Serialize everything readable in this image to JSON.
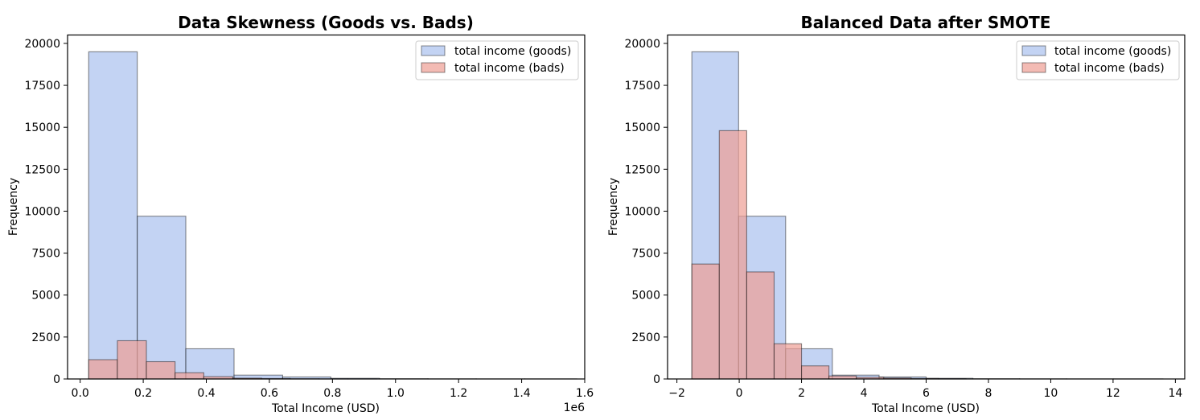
{
  "colors": {
    "goods": "#a9c0ee",
    "bads": "#ee9e94",
    "edge": "#000000",
    "alpha": 0.7,
    "edge_alpha": 0.45
  },
  "charts": [
    {
      "title": "Data Skewness (Goods vs. Bads)",
      "xlabel": "Total Income (USD)",
      "ylabel": "Frequency",
      "offset_text": "1e6",
      "xticks": [
        "0.0",
        "0.2",
        "0.4",
        "0.6",
        "0.8",
        "1.0",
        "1.2",
        "1.4",
        "1.6"
      ],
      "yticks": [
        "0",
        "2500",
        "5000",
        "7500",
        "10000",
        "12500",
        "15000",
        "17500",
        "20000"
      ],
      "legend": [
        "total income (goods)",
        "total income (bads)"
      ]
    },
    {
      "title": "Balanced Data after SMOTE",
      "xlabel": "Total Income (USD)",
      "ylabel": "Frequency",
      "offset_text": "",
      "xticks": [
        "−2",
        "0",
        "2",
        "4",
        "6",
        "8",
        "10",
        "12",
        "14"
      ],
      "yticks": [
        "0",
        "2500",
        "5000",
        "7500",
        "10000",
        "12500",
        "15000",
        "17500",
        "20000"
      ],
      "legend": [
        "total income (goods)",
        "total income (bads)"
      ]
    }
  ],
  "chart_data": [
    {
      "type": "histogram",
      "title": "Data Skewness (Goods vs. Bads)",
      "xlabel": "Total Income (USD)",
      "ylabel": "Frequency",
      "x_scale_label": "1e6",
      "xlim": [
        -0.04,
        1.6
      ],
      "ylim": [
        0,
        20500
      ],
      "x_ticks": [
        0.0,
        0.2,
        0.4,
        0.6,
        0.8,
        1.0,
        1.2,
        1.4,
        1.6
      ],
      "y_ticks": [
        0,
        2500,
        5000,
        7500,
        10000,
        12500,
        15000,
        17500,
        20000
      ],
      "legend_position": "upper right",
      "series": [
        {
          "name": "total income (goods)",
          "bin_edges": [
            0.027,
            0.181,
            0.335,
            0.488,
            0.642,
            0.795,
            0.949,
            1.103,
            1.256,
            1.41,
            1.575
          ],
          "counts": [
            19500,
            9700,
            1800,
            230,
            120,
            40,
            15,
            8,
            5,
            5
          ]
        },
        {
          "name": "total income (bads)",
          "bin_edges": [
            0.027,
            0.118,
            0.21,
            0.301,
            0.392,
            0.484,
            0.575,
            0.666,
            0.758,
            0.849,
            0.94
          ],
          "counts": [
            1150,
            2280,
            1030,
            370,
            140,
            50,
            30,
            12,
            5,
            3
          ]
        }
      ]
    },
    {
      "type": "histogram",
      "title": "Balanced Data after SMOTE",
      "xlabel": "Total Income (USD)",
      "ylabel": "Frequency",
      "xlim": [
        -2.3,
        14.3
      ],
      "ylim": [
        0,
        20500
      ],
      "x_ticks": [
        -2,
        0,
        2,
        4,
        6,
        8,
        10,
        12,
        14
      ],
      "y_ticks": [
        0,
        2500,
        5000,
        7500,
        10000,
        12500,
        15000,
        17500,
        20000
      ],
      "legend_position": "upper right",
      "series": [
        {
          "name": "total income (goods)",
          "bin_edges": [
            -1.52,
            -0.02,
            1.49,
            2.99,
            4.49,
            6.0,
            7.5,
            9.0,
            10.51,
            12.01,
            13.6
          ],
          "counts": [
            19500,
            9700,
            1800,
            230,
            120,
            40,
            15,
            8,
            5,
            5
          ]
        },
        {
          "name": "total income (bads)",
          "bin_edges": [
            -1.52,
            -0.64,
            0.24,
            1.12,
            2.0,
            2.88,
            3.76,
            4.64,
            5.52,
            6.4,
            7.28
          ],
          "counts": [
            6850,
            14800,
            6380,
            2100,
            780,
            180,
            100,
            60,
            30,
            15
          ]
        }
      ]
    }
  ]
}
